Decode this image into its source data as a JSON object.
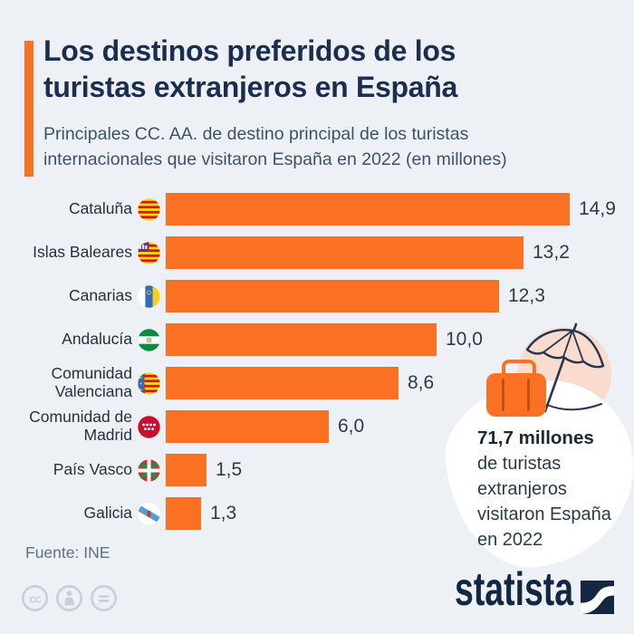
{
  "header": {
    "title_lines": [
      "Los destinos preferidos de los",
      "turistas extranjeros en España"
    ],
    "subtitle_lines": [
      "Principales CC. AA. de destino principal de los turistas",
      "internacionales que visitaron España en 2022 (en millones)"
    ]
  },
  "chart_data": {
    "type": "bar",
    "orientation": "horizontal",
    "title": "Los destinos preferidos de los turistas extranjeros en España",
    "subtitle": "Principales CC. AA. de destino principal de los turistas internacionales que visitaron España en 2022 (en millones)",
    "unit": "millones de turistas",
    "categories": [
      "Cataluña",
      "Islas Baleares",
      "Canarias",
      "Andalucía",
      "Comunidad Valenciana",
      "Comunidad de Madrid",
      "País Vasco",
      "Galicia"
    ],
    "values": [
      14.9,
      13.2,
      12.3,
      10.0,
      8.6,
      6.0,
      1.5,
      1.3
    ],
    "value_labels": [
      "14,9",
      "13,2",
      "12,3",
      "10,0",
      "8,6",
      "6,0",
      "1,5",
      "1,3"
    ],
    "flags": [
      "cataluna",
      "islas-baleares",
      "canarias",
      "andalucia",
      "comunidad-valenciana",
      "comunidad-de-madrid",
      "pais-vasco",
      "galicia"
    ],
    "xlim": [
      0,
      15
    ],
    "grid": false,
    "legend": false,
    "bar_color": "#fb7124"
  },
  "annotation": {
    "headline": "71,7 millones",
    "lines": [
      "de turistas",
      "extranjeros",
      "visitaron España",
      "en 2022"
    ],
    "illustration": "suitcase-and-beach-umbrella"
  },
  "footer": {
    "source": "Fuente: INE",
    "brand": "statista",
    "license_icons": [
      "cc",
      "attribution",
      "no-derivatives"
    ]
  },
  "colors": {
    "background": "#edf1f6",
    "accent_orange": "#fb7124",
    "title_navy": "#1c2e4d",
    "subtitle_slate": "#3d5268",
    "label_dark": "#25313e",
    "source_gray": "#5d7183",
    "license_gray": "#c7d0da",
    "brand_navy": "#132743",
    "annotation_circle": "#f9dccd",
    "annotation_blob": "#ffffff"
  }
}
